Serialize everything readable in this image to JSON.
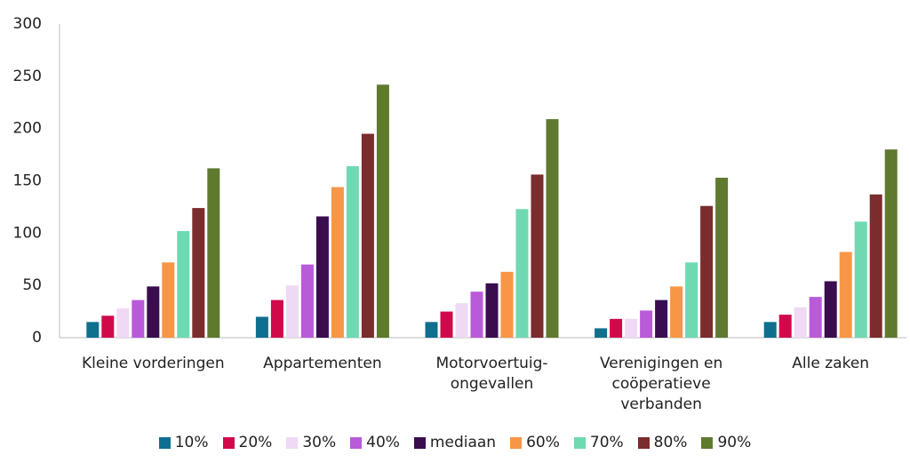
{
  "chart_data": {
    "type": "bar",
    "categories": [
      "Kleine vorderingen",
      "Appartementen",
      "Motorvoertuig-ongevallen",
      "Verenigingen en coöperatieve verbanden",
      "Alle zaken"
    ],
    "series": [
      {
        "name": "10%",
        "color": "#0f6f8f",
        "values": [
          15,
          20,
          15,
          9,
          15
        ]
      },
      {
        "name": "20%",
        "color": "#d1094b",
        "values": [
          21,
          36,
          25,
          18,
          22
        ]
      },
      {
        "name": "30%",
        "color": "#efd9f5",
        "values": [
          28,
          50,
          33,
          18,
          29
        ]
      },
      {
        "name": "40%",
        "color": "#b95ad9",
        "values": [
          36,
          70,
          44,
          26,
          39
        ]
      },
      {
        "name": "mediaan",
        "color": "#3a0e4e",
        "values": [
          49,
          116,
          52,
          36,
          54
        ]
      },
      {
        "name": "60%",
        "color": "#f79646",
        "values": [
          72,
          144,
          63,
          49,
          82
        ]
      },
      {
        "name": "70%",
        "color": "#6fd9b1",
        "values": [
          102,
          164,
          123,
          72,
          111
        ]
      },
      {
        "name": "80%",
        "color": "#7b2c2c",
        "values": [
          124,
          195,
          156,
          126,
          137
        ]
      },
      {
        "name": "90%",
        "color": "#5f7a2f",
        "values": [
          162,
          242,
          209,
          153,
          180
        ]
      }
    ],
    "ylim": [
      0,
      300
    ],
    "yticks": [
      0,
      50,
      100,
      150,
      200,
      250,
      300
    ],
    "grid": false
  }
}
